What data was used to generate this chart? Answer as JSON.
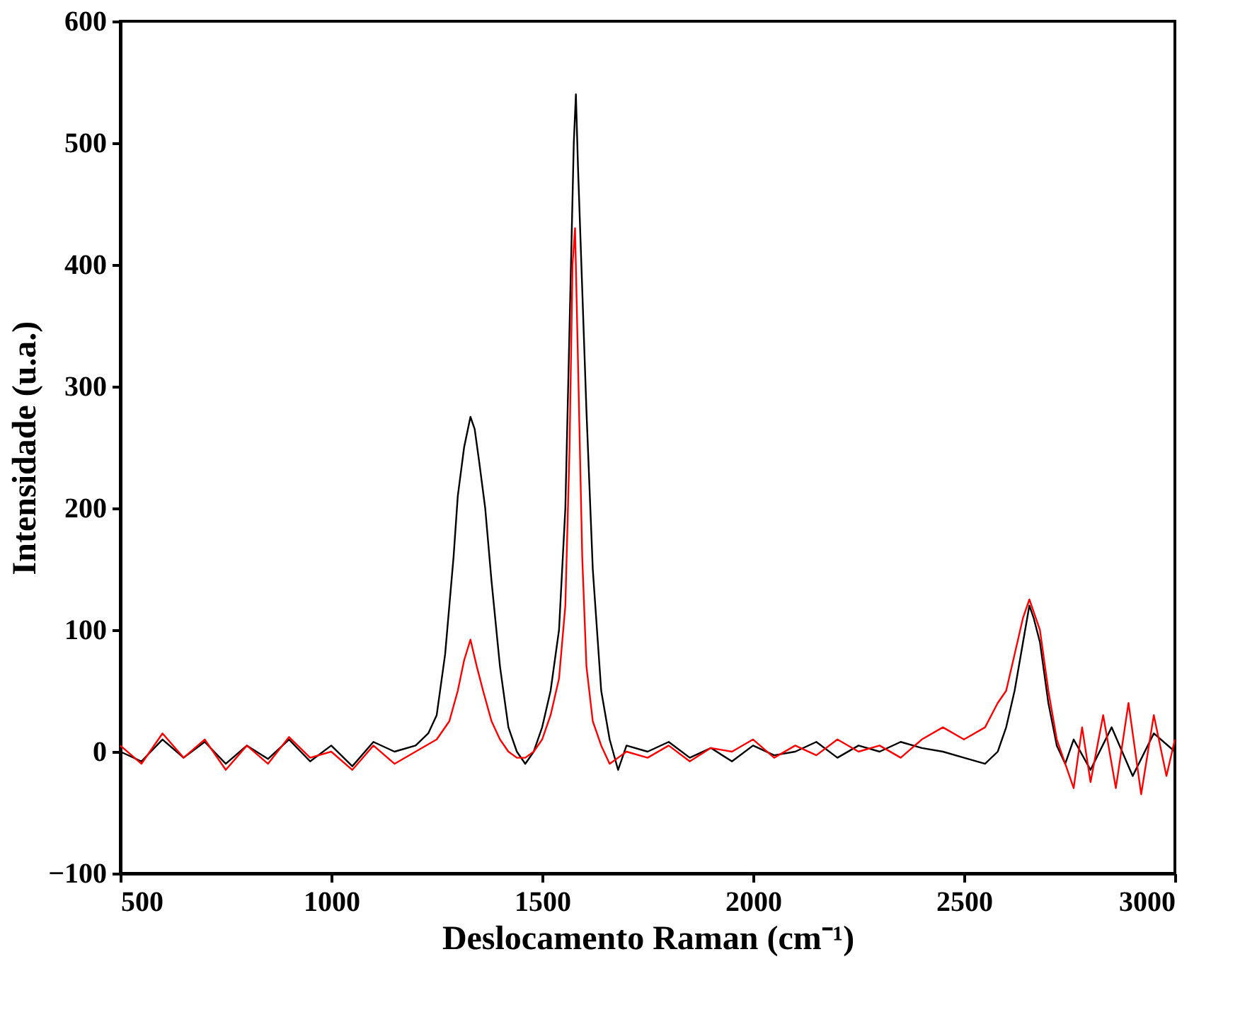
{
  "chart_data": {
    "type": "line",
    "xlabel": "Deslocamento Raman (cm⁻¹)",
    "ylabel": "Intensidade (u.a.)",
    "xlim": [
      500,
      3000
    ],
    "ylim": [
      -100,
      600
    ],
    "xticks": [
      500,
      1000,
      1500,
      2000,
      2500,
      3000
    ],
    "yticks": [
      -100,
      0,
      100,
      200,
      300,
      400,
      500,
      600
    ],
    "grid": false,
    "legend": false,
    "marker": "none",
    "line_style": "solid",
    "series": [
      {
        "color": "#000000",
        "x": [
          500,
          550,
          600,
          650,
          700,
          750,
          800,
          850,
          900,
          950,
          1000,
          1050,
          1100,
          1150,
          1200,
          1230,
          1250,
          1270,
          1290,
          1300,
          1315,
          1330,
          1340,
          1350,
          1365,
          1380,
          1400,
          1420,
          1440,
          1460,
          1480,
          1500,
          1520,
          1540,
          1555,
          1565,
          1575,
          1580,
          1585,
          1595,
          1605,
          1620,
          1640,
          1660,
          1680,
          1700,
          1750,
          1800,
          1850,
          1900,
          1950,
          2000,
          2050,
          2100,
          2150,
          2200,
          2250,
          2300,
          2350,
          2400,
          2450,
          2500,
          2550,
          2580,
          2600,
          2620,
          2640,
          2655,
          2665,
          2680,
          2700,
          2720,
          2740,
          2760,
          2800,
          2850,
          2900,
          2950,
          3000
        ],
        "values": [
          0,
          -8,
          10,
          -5,
          8,
          -10,
          5,
          -6,
          10,
          -8,
          5,
          -12,
          8,
          0,
          5,
          15,
          30,
          80,
          160,
          210,
          250,
          275,
          265,
          240,
          200,
          140,
          70,
          20,
          0,
          -10,
          0,
          20,
          50,
          100,
          200,
          350,
          500,
          540,
          480,
          380,
          280,
          150,
          50,
          10,
          -15,
          5,
          0,
          8,
          -5,
          3,
          -8,
          5,
          -3,
          0,
          8,
          -5,
          5,
          0,
          8,
          3,
          0,
          -5,
          -10,
          0,
          20,
          50,
          90,
          120,
          110,
          90,
          40,
          5,
          -10,
          10,
          -15,
          20,
          -20,
          15,
          0
        ]
      },
      {
        "color": "#ff0000",
        "x": [
          500,
          550,
          600,
          650,
          700,
          750,
          800,
          850,
          900,
          950,
          1000,
          1050,
          1100,
          1150,
          1200,
          1250,
          1280,
          1300,
          1315,
          1330,
          1345,
          1360,
          1380,
          1400,
          1420,
          1440,
          1460,
          1480,
          1500,
          1520,
          1540,
          1555,
          1565,
          1572,
          1578,
          1585,
          1595,
          1605,
          1620,
          1640,
          1660,
          1680,
          1700,
          1750,
          1800,
          1850,
          1900,
          1950,
          2000,
          2050,
          2100,
          2150,
          2200,
          2250,
          2300,
          2350,
          2400,
          2450,
          2500,
          2550,
          2580,
          2600,
          2620,
          2640,
          2655,
          2665,
          2680,
          2700,
          2720,
          2740,
          2760,
          2780,
          2800,
          2830,
          2860,
          2890,
          2920,
          2950,
          2980,
          3000
        ],
        "values": [
          5,
          -10,
          15,
          -5,
          10,
          -15,
          5,
          -10,
          12,
          -5,
          0,
          -15,
          5,
          -10,
          0,
          10,
          25,
          50,
          75,
          92,
          70,
          50,
          25,
          10,
          0,
          -5,
          -5,
          0,
          10,
          30,
          60,
          120,
          250,
          400,
          430,
          320,
          160,
          70,
          25,
          5,
          -10,
          -5,
          0,
          -5,
          5,
          -8,
          3,
          0,
          10,
          -5,
          5,
          -3,
          10,
          0,
          5,
          -5,
          10,
          20,
          10,
          20,
          40,
          50,
          80,
          110,
          125,
          115,
          100,
          50,
          10,
          -10,
          -30,
          20,
          -25,
          30,
          -30,
          40,
          -35,
          30,
          -20,
          10
        ]
      }
    ]
  }
}
